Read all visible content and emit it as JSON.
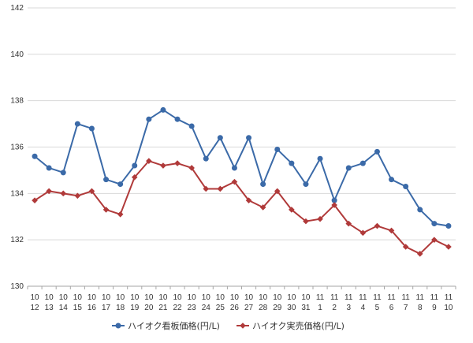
{
  "chart_data": {
    "type": "line",
    "x_tick_labels": [
      [
        "10",
        "12"
      ],
      [
        "10",
        "13"
      ],
      [
        "10",
        "14"
      ],
      [
        "10",
        "15"
      ],
      [
        "10",
        "16"
      ],
      [
        "10",
        "17"
      ],
      [
        "10",
        "18"
      ],
      [
        "10",
        "19"
      ],
      [
        "10",
        "20"
      ],
      [
        "10",
        "21"
      ],
      [
        "10",
        "22"
      ],
      [
        "10",
        "23"
      ],
      [
        "10",
        "24"
      ],
      [
        "10",
        "25"
      ],
      [
        "10",
        "26"
      ],
      [
        "10",
        "27"
      ],
      [
        "10",
        "28"
      ],
      [
        "10",
        "29"
      ],
      [
        "10",
        "30"
      ],
      [
        "10",
        "31"
      ],
      [
        "11",
        "1"
      ],
      [
        "11",
        "2"
      ],
      [
        "11",
        "3"
      ],
      [
        "11",
        "4"
      ],
      [
        "11",
        "5"
      ],
      [
        "11",
        "6"
      ],
      [
        "11",
        "7"
      ],
      [
        "11",
        "8"
      ],
      [
        "11",
        "9"
      ],
      [
        "11",
        "10"
      ]
    ],
    "ylim": [
      130,
      142
    ],
    "y_ticks": [
      130,
      132,
      134,
      136,
      138,
      140,
      142
    ],
    "grid": true,
    "legend_position": "bottom",
    "series": [
      {
        "name": "ハイオク看板価格(円/L)",
        "color": "#3b6aa8",
        "marker": "circle",
        "values": [
          135.6,
          135.1,
          134.9,
          137.0,
          136.8,
          134.6,
          134.4,
          135.2,
          137.2,
          137.6,
          137.2,
          136.9,
          135.5,
          136.4,
          135.1,
          136.4,
          134.4,
          135.9,
          135.3,
          134.4,
          135.5,
          133.7,
          135.1,
          135.3,
          135.8,
          134.6,
          134.3,
          133.3,
          132.7,
          132.6
        ]
      },
      {
        "name": "ハイオク実売価格(円/L)",
        "color": "#b03a3a",
        "marker": "diamond",
        "values": [
          133.7,
          134.1,
          134.0,
          133.9,
          134.1,
          133.3,
          133.1,
          134.7,
          135.4,
          135.2,
          135.3,
          135.1,
          134.2,
          134.2,
          134.5,
          133.7,
          133.4,
          134.1,
          133.3,
          132.8,
          132.9,
          133.5,
          132.7,
          132.3,
          132.6,
          132.4,
          131.7,
          131.4,
          132.0,
          131.7
        ]
      }
    ]
  }
}
